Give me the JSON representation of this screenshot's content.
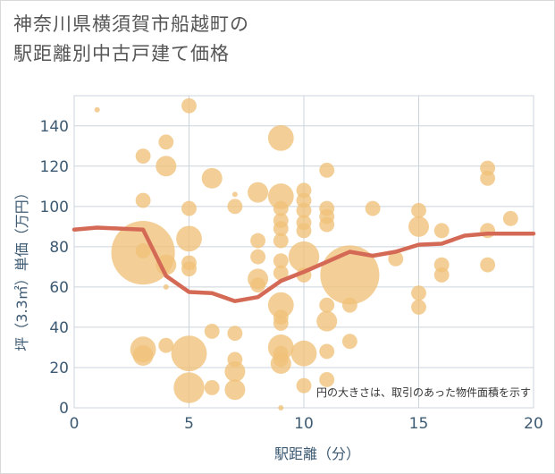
{
  "title_line1": "神奈川県横須賀市船越町の",
  "title_line2": "駅距離別中古戸建て価格",
  "chart_data": {
    "type": "scatter",
    "xlabel": "駅距離（分）",
    "ylabel": "坪（3.3㎡）単価（万円）",
    "xlim": [
      0,
      20
    ],
    "ylim": [
      0,
      155
    ],
    "xticks": [
      0,
      5,
      10,
      15,
      20
    ],
    "yticks": [
      0,
      20,
      40,
      60,
      80,
      100,
      120,
      140
    ],
    "grid": true,
    "note": "円の大きさは、取引のあった物件面積を示す",
    "colors": {
      "bubble": "#f0c27a",
      "line": "#d46a55",
      "grid": "#ccd3dc"
    },
    "bubbles": [
      {
        "x": 1,
        "y": 148,
        "s": 1
      },
      {
        "x": 3,
        "y": 125,
        "s": 2
      },
      {
        "x": 3,
        "y": 103,
        "s": 2
      },
      {
        "x": 3,
        "y": 77,
        "s": 12
      },
      {
        "x": 3,
        "y": 78,
        "s": 2
      },
      {
        "x": 3,
        "y": 29,
        "s": 4
      },
      {
        "x": 3,
        "y": 26,
        "s": 3
      },
      {
        "x": 4,
        "y": 132,
        "s": 2
      },
      {
        "x": 4,
        "y": 120,
        "s": 3
      },
      {
        "x": 4,
        "y": 71,
        "s": 3
      },
      {
        "x": 4,
        "y": 60,
        "s": 1
      },
      {
        "x": 4,
        "y": 31,
        "s": 2
      },
      {
        "x": 5,
        "y": 150,
        "s": 2
      },
      {
        "x": 5,
        "y": 99,
        "s": 2
      },
      {
        "x": 5,
        "y": 84,
        "s": 4
      },
      {
        "x": 5,
        "y": 72,
        "s": 2
      },
      {
        "x": 5,
        "y": 69,
        "s": 2
      },
      {
        "x": 5,
        "y": 27,
        "s": 6
      },
      {
        "x": 5,
        "y": 10,
        "s": 5
      },
      {
        "x": 6,
        "y": 114,
        "s": 3
      },
      {
        "x": 6,
        "y": 38,
        "s": 2
      },
      {
        "x": 6,
        "y": 10,
        "s": 2
      },
      {
        "x": 7,
        "y": 106,
        "s": 1
      },
      {
        "x": 7,
        "y": 100,
        "s": 2
      },
      {
        "x": 7,
        "y": 37,
        "s": 2
      },
      {
        "x": 7,
        "y": 24,
        "s": 2
      },
      {
        "x": 7,
        "y": 18,
        "s": 3
      },
      {
        "x": 7,
        "y": 9,
        "s": 3
      },
      {
        "x": 8,
        "y": 107,
        "s": 3
      },
      {
        "x": 8,
        "y": 83,
        "s": 2
      },
      {
        "x": 8,
        "y": 75,
        "s": 2
      },
      {
        "x": 8,
        "y": 64,
        "s": 3
      },
      {
        "x": 8,
        "y": 61,
        "s": 2
      },
      {
        "x": 9,
        "y": 134,
        "s": 4
      },
      {
        "x": 9,
        "y": 105,
        "s": 4
      },
      {
        "x": 9,
        "y": 99,
        "s": 2
      },
      {
        "x": 9,
        "y": 93,
        "s": 2
      },
      {
        "x": 9,
        "y": 89,
        "s": 2
      },
      {
        "x": 9,
        "y": 83,
        "s": 2
      },
      {
        "x": 9,
        "y": 73,
        "s": 2
      },
      {
        "x": 9,
        "y": 67,
        "s": 2
      },
      {
        "x": 9,
        "y": 51,
        "s": 4
      },
      {
        "x": 9,
        "y": 45,
        "s": 2
      },
      {
        "x": 9,
        "y": 42,
        "s": 2
      },
      {
        "x": 9,
        "y": 30,
        "s": 4
      },
      {
        "x": 9,
        "y": 27,
        "s": 2
      },
      {
        "x": 9,
        "y": 24,
        "s": 2
      },
      {
        "x": 9,
        "y": 22,
        "s": 3
      },
      {
        "x": 9,
        "y": 0,
        "s": 1
      },
      {
        "x": 10,
        "y": 108,
        "s": 2
      },
      {
        "x": 10,
        "y": 103,
        "s": 2
      },
      {
        "x": 10,
        "y": 98,
        "s": 2
      },
      {
        "x": 10,
        "y": 92,
        "s": 2
      },
      {
        "x": 10,
        "y": 88,
        "s": 2
      },
      {
        "x": 10,
        "y": 75,
        "s": 5
      },
      {
        "x": 10,
        "y": 66,
        "s": 2
      },
      {
        "x": 10,
        "y": 27,
        "s": 4
      },
      {
        "x": 10,
        "y": 11,
        "s": 2
      },
      {
        "x": 11,
        "y": 118,
        "s": 2
      },
      {
        "x": 11,
        "y": 99,
        "s": 2
      },
      {
        "x": 11,
        "y": 95,
        "s": 2
      },
      {
        "x": 11,
        "y": 91,
        "s": 2
      },
      {
        "x": 11,
        "y": 51,
        "s": 2
      },
      {
        "x": 11,
        "y": 43,
        "s": 3
      },
      {
        "x": 11,
        "y": 28,
        "s": 2
      },
      {
        "x": 11,
        "y": 14,
        "s": 2
      },
      {
        "x": 12,
        "y": 66,
        "s": 11
      },
      {
        "x": 12,
        "y": 51,
        "s": 2
      },
      {
        "x": 12,
        "y": 33,
        "s": 2
      },
      {
        "x": 13,
        "y": 99,
        "s": 2
      },
      {
        "x": 14,
        "y": 74,
        "s": 2
      },
      {
        "x": 15,
        "y": 98,
        "s": 2
      },
      {
        "x": 15,
        "y": 90,
        "s": 3
      },
      {
        "x": 15,
        "y": 57,
        "s": 2
      },
      {
        "x": 15,
        "y": 50,
        "s": 2
      },
      {
        "x": 16,
        "y": 88,
        "s": 2
      },
      {
        "x": 16,
        "y": 71,
        "s": 2
      },
      {
        "x": 16,
        "y": 66,
        "s": 2
      },
      {
        "x": 18,
        "y": 119,
        "s": 2
      },
      {
        "x": 18,
        "y": 114,
        "s": 2
      },
      {
        "x": 18,
        "y": 88,
        "s": 2
      },
      {
        "x": 18,
        "y": 71,
        "s": 2
      },
      {
        "x": 19,
        "y": 94,
        "s": 2
      }
    ],
    "trend": {
      "x": [
        0,
        1,
        2,
        3,
        4,
        5,
        6,
        7,
        8,
        9,
        10,
        11,
        12,
        13,
        14,
        15,
        16,
        17,
        18,
        19,
        20
      ],
      "y": [
        88.5,
        89.5,
        89,
        88.5,
        65.5,
        57.5,
        57,
        53,
        55,
        63,
        67.5,
        72.5,
        77.5,
        75.5,
        77.5,
        81,
        81.5,
        85.5,
        86.5,
        86.5,
        86.5
      ]
    }
  }
}
